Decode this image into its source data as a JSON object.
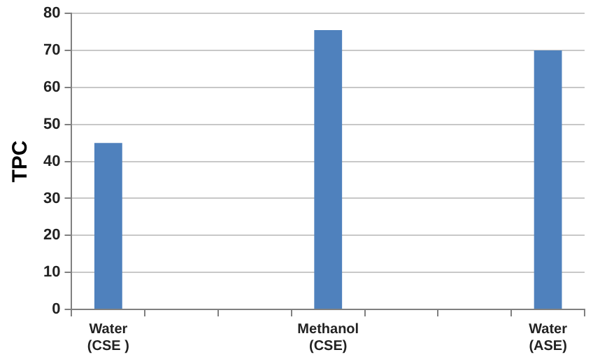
{
  "chart_data": {
    "type": "bar",
    "ylabel": "TPC",
    "categories": [
      "Water\n(CSE )",
      null,
      null,
      "Methanol\n(CSE)",
      null,
      null,
      "Water\n(ASE)"
    ],
    "values": [
      45,
      null,
      null,
      75.5,
      null,
      null,
      70
    ],
    "color": "#4f81bd",
    "ylim": [
      0,
      80
    ],
    "yticks": [
      0,
      10,
      20,
      30,
      40,
      50,
      60,
      70,
      80
    ],
    "grid": "y",
    "legend": false
  }
}
